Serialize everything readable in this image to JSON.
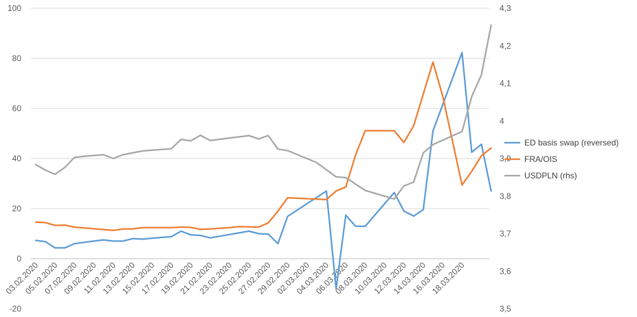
{
  "chart_data": {
    "type": "line",
    "y_left": {
      "ticks": [
        100,
        80,
        60,
        40,
        20,
        0,
        -20
      ],
      "tick_labels": [
        "100",
        "80",
        "60",
        "40",
        "20",
        "0",
        "-20"
      ],
      "range": [
        -20,
        100
      ]
    },
    "y_right": {
      "ticks": [
        4.3,
        4.2,
        4.1,
        4.0,
        3.9,
        3.8,
        3.7,
        3.6,
        3.5
      ],
      "tick_labels": [
        "4,3",
        "4,2",
        "4,1",
        "4",
        "3,9",
        "3,8",
        "3,7",
        "3,6",
        "3,5"
      ],
      "range": [
        3.5,
        4.3
      ]
    },
    "x_tick_labels": [
      "03.02.2020",
      "05.02.2020",
      "07.02.2020",
      "09.02.2020",
      "11.02.2020",
      "13.02.2020",
      "15.02.2020",
      "17.02.2020",
      "19.02.2020",
      "21.02.2020",
      "23.02.2020",
      "25.02.2020",
      "27.02.2020",
      "29.02.2020",
      "02.03.2020",
      "04.03.2020",
      "06.03.2020",
      "08.03.2020",
      "10.03.2020",
      "12.03.2020",
      "14.03.2020",
      "16.03.2020",
      "18.03.2020"
    ],
    "x_range": [
      0,
      46
    ],
    "grid": "horizontal",
    "legend_position": "right",
    "series": [
      {
        "name": "ED basis swap (reversed)",
        "axis": "left",
        "color": "#5b9bd5",
        "points": [
          [
            0,
            7.3
          ],
          [
            1,
            6.8
          ],
          [
            2,
            4.3
          ],
          [
            3,
            4.3
          ],
          [
            4,
            6
          ],
          [
            6,
            7
          ],
          [
            7,
            7.5
          ],
          [
            8,
            7
          ],
          [
            9,
            7
          ],
          [
            10,
            8
          ],
          [
            11,
            7.8
          ],
          [
            13,
            8.5
          ],
          [
            14,
            8.8
          ],
          [
            15,
            11
          ],
          [
            16,
            9.5
          ],
          [
            17,
            9.3
          ],
          [
            18,
            8.3
          ],
          [
            22,
            11
          ],
          [
            23,
            10
          ],
          [
            24,
            9.8
          ],
          [
            25,
            6
          ],
          [
            26,
            16.9
          ],
          [
            30,
            27
          ],
          [
            31,
            -12
          ],
          [
            32,
            17.4
          ],
          [
            33,
            13
          ],
          [
            34,
            12.9
          ],
          [
            37,
            26.4
          ],
          [
            38,
            19
          ],
          [
            39,
            17
          ],
          [
            40,
            19.6
          ],
          [
            41,
            51
          ],
          [
            44,
            82.3
          ],
          [
            45,
            42.5
          ],
          [
            46,
            45.7
          ],
          [
            47,
            27
          ]
        ]
      },
      {
        "name": "FRA/OIS",
        "axis": "left",
        "color": "#ed7d31",
        "points": [
          [
            0,
            14.6
          ],
          [
            1,
            14.4
          ],
          [
            2,
            13.3
          ],
          [
            3,
            13.4
          ],
          [
            4,
            12.6
          ],
          [
            8,
            11.3
          ],
          [
            9,
            11.9
          ],
          [
            10,
            11.9
          ],
          [
            11,
            12.4
          ],
          [
            14,
            12.4
          ],
          [
            15,
            12.6
          ],
          [
            16,
            12.5
          ],
          [
            17,
            11.7
          ],
          [
            18,
            11.9
          ],
          [
            20,
            12.4
          ],
          [
            21,
            12.8
          ],
          [
            22,
            12.7
          ],
          [
            23,
            12.6
          ],
          [
            24,
            14.3
          ],
          [
            25,
            19
          ],
          [
            26,
            24.3
          ],
          [
            30,
            23.6
          ],
          [
            31,
            27
          ],
          [
            32,
            28.6
          ],
          [
            33,
            41.3
          ],
          [
            34,
            51.1
          ],
          [
            37,
            51.1
          ],
          [
            38,
            46.4
          ],
          [
            39,
            53
          ],
          [
            41,
            78.5
          ],
          [
            42,
            65
          ],
          [
            44,
            29.4
          ],
          [
            45,
            34.9
          ],
          [
            46,
            41.1
          ],
          [
            47,
            44.2
          ]
        ]
      },
      {
        "name": "USDPLN (rhs)",
        "axis": "right",
        "color": "#a5a5a5",
        "points": [
          [
            0,
            3.884
          ],
          [
            1,
            3.869
          ],
          [
            2,
            3.858
          ],
          [
            3,
            3.876
          ],
          [
            4,
            3.903
          ],
          [
            5,
            3.906
          ],
          [
            7,
            3.91
          ],
          [
            8,
            3.9
          ],
          [
            9,
            3.91
          ],
          [
            11,
            3.92
          ],
          [
            14,
            3.926
          ],
          [
            15,
            3.951
          ],
          [
            16,
            3.947
          ],
          [
            17,
            3.962
          ],
          [
            18,
            3.948
          ],
          [
            22,
            3.961
          ],
          [
            23,
            3.952
          ],
          [
            24,
            3.961
          ],
          [
            25,
            3.925
          ],
          [
            26,
            3.921
          ],
          [
            29,
            3.889
          ],
          [
            31,
            3.851
          ],
          [
            32,
            3.849
          ],
          [
            34,
            3.815
          ],
          [
            37,
            3.792
          ],
          [
            38,
            3.827
          ],
          [
            39,
            3.837
          ],
          [
            40,
            3.915
          ],
          [
            41,
            3.937
          ],
          [
            44,
            3.972
          ],
          [
            45,
            4.065
          ],
          [
            46,
            4.123
          ],
          [
            47,
            4.255
          ]
        ]
      }
    ]
  }
}
